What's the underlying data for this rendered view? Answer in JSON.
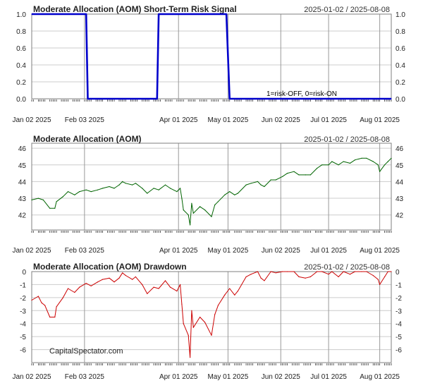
{
  "x_tick_labels": [
    "Jan 02 2025",
    "Feb 03 2025",
    "Apr 01 2025",
    "May 01 2025",
    "Jun 02 2025",
    "Jul 01 2025",
    "Aug 01 2025"
  ],
  "x_tick_dates": [
    "2025-01-02",
    "2025-02-03",
    "2025-04-01",
    "2025-05-01",
    "2025-06-02",
    "2025-07-01",
    "2025-08-01"
  ],
  "date_range": [
    "2025-01-02",
    "2025-08-08"
  ],
  "colors": {
    "risk": "#0000cc",
    "price": "#006400",
    "drawdown": "#cc0000",
    "grid": "#cccccc",
    "frame": "#7f7f7f",
    "vline": "#999999"
  },
  "watermark": "CapitalSpectator.com",
  "chart_data": [
    {
      "type": "line",
      "title": "Moderate Allocation (AOM) Short-Term Risk Signal",
      "range_label": "2025-01-02 / 2025-08-08",
      "annotation": "1=risk-OFF, 0=risk-ON",
      "ylim": [
        0,
        1
      ],
      "yticks": [
        "0.0",
        "0.2",
        "0.4",
        "0.6",
        "0.8",
        "1.0"
      ],
      "grid": true,
      "series": [
        {
          "values": [
            [
              "2025-01-02",
              1
            ],
            [
              "2025-02-04",
              1
            ],
            [
              "2025-02-05",
              0
            ],
            [
              "2025-03-19",
              0
            ],
            [
              "2025-03-20",
              1
            ],
            [
              "2025-04-30",
              1
            ],
            [
              "2025-05-01",
              0.5
            ],
            [
              "2025-05-02",
              0
            ],
            [
              "2025-08-08",
              0
            ]
          ]
        }
      ]
    },
    {
      "type": "line",
      "title": "Moderate Allocation (AOM)",
      "range_label": "2025-01-02 / 2025-08-08",
      "ylim": [
        41.1,
        46.3
      ],
      "yticks": [
        "42",
        "43",
        "44",
        "45",
        "46"
      ],
      "grid": true,
      "series": [
        {
          "values": [
            [
              "2025-01-02",
              42.9
            ],
            [
              "2025-01-06",
              43.0
            ],
            [
              "2025-01-09",
              42.9
            ],
            [
              "2025-01-13",
              42.4
            ],
            [
              "2025-01-16",
              42.4
            ],
            [
              "2025-01-17",
              42.8
            ],
            [
              "2025-01-21",
              43.1
            ],
            [
              "2025-01-24",
              43.4
            ],
            [
              "2025-01-28",
              43.2
            ],
            [
              "2025-01-31",
              43.4
            ],
            [
              "2025-02-04",
              43.5
            ],
            [
              "2025-02-07",
              43.4
            ],
            [
              "2025-02-11",
              43.5
            ],
            [
              "2025-02-14",
              43.6
            ],
            [
              "2025-02-18",
              43.7
            ],
            [
              "2025-02-21",
              43.6
            ],
            [
              "2025-02-24",
              43.8
            ],
            [
              "2025-02-26",
              44.0
            ],
            [
              "2025-02-28",
              43.9
            ],
            [
              "2025-03-04",
              43.8
            ],
            [
              "2025-03-06",
              43.9
            ],
            [
              "2025-03-10",
              43.6
            ],
            [
              "2025-03-13",
              43.3
            ],
            [
              "2025-03-17",
              43.6
            ],
            [
              "2025-03-20",
              43.5
            ],
            [
              "2025-03-24",
              43.8
            ],
            [
              "2025-03-27",
              43.6
            ],
            [
              "2025-03-31",
              43.4
            ],
            [
              "2025-04-02",
              43.6
            ],
            [
              "2025-04-03",
              43.0
            ],
            [
              "2025-04-04",
              42.3
            ],
            [
              "2025-04-07",
              42.0
            ],
            [
              "2025-04-08",
              41.4
            ],
            [
              "2025-04-09",
              42.7
            ],
            [
              "2025-04-10",
              42.1
            ],
            [
              "2025-04-14",
              42.5
            ],
            [
              "2025-04-17",
              42.3
            ],
            [
              "2025-04-21",
              41.9
            ],
            [
              "2025-04-23",
              42.6
            ],
            [
              "2025-04-25",
              42.8
            ],
            [
              "2025-04-29",
              43.2
            ],
            [
              "2025-05-02",
              43.4
            ],
            [
              "2025-05-05",
              43.2
            ],
            [
              "2025-05-07",
              43.3
            ],
            [
              "2025-05-12",
              43.8
            ],
            [
              "2025-05-15",
              43.9
            ],
            [
              "2025-05-19",
              44.0
            ],
            [
              "2025-05-21",
              43.8
            ],
            [
              "2025-05-23",
              43.7
            ],
            [
              "2025-05-27",
              44.1
            ],
            [
              "2025-05-30",
              44.1
            ],
            [
              "2025-06-03",
              44.3
            ],
            [
              "2025-06-06",
              44.5
            ],
            [
              "2025-06-10",
              44.6
            ],
            [
              "2025-06-13",
              44.4
            ],
            [
              "2025-06-17",
              44.4
            ],
            [
              "2025-06-20",
              44.4
            ],
            [
              "2025-06-24",
              44.8
            ],
            [
              "2025-06-27",
              45.0
            ],
            [
              "2025-07-01",
              45.0
            ],
            [
              "2025-07-03",
              45.2
            ],
            [
              "2025-07-07",
              45.0
            ],
            [
              "2025-07-10",
              45.2
            ],
            [
              "2025-07-14",
              45.1
            ],
            [
              "2025-07-17",
              45.3
            ],
            [
              "2025-07-21",
              45.4
            ],
            [
              "2025-07-24",
              45.4
            ],
            [
              "2025-07-28",
              45.2
            ],
            [
              "2025-07-31",
              45.0
            ],
            [
              "2025-08-01",
              44.6
            ],
            [
              "2025-08-04",
              45.0
            ],
            [
              "2025-08-06",
              45.2
            ],
            [
              "2025-08-08",
              45.4
            ]
          ]
        }
      ]
    },
    {
      "type": "line",
      "title": "Moderate Allocation (AOM) Drawdown",
      "range_label": "2025-01-02 / 2025-08-08",
      "ylim": [
        -7,
        0
      ],
      "yticks": [
        "-6",
        "-5",
        "-4",
        "-3",
        "-2",
        "-1",
        "0"
      ],
      "grid": true,
      "series": [
        {
          "values": [
            [
              "2025-01-02",
              -2.2
            ],
            [
              "2025-01-06",
              -1.9
            ],
            [
              "2025-01-08",
              -2.4
            ],
            [
              "2025-01-10",
              -2.6
            ],
            [
              "2025-01-13",
              -3.5
            ],
            [
              "2025-01-16",
              -3.5
            ],
            [
              "2025-01-17",
              -2.7
            ],
            [
              "2025-01-21",
              -2.0
            ],
            [
              "2025-01-24",
              -1.3
            ],
            [
              "2025-01-28",
              -1.6
            ],
            [
              "2025-01-31",
              -1.2
            ],
            [
              "2025-02-04",
              -0.9
            ],
            [
              "2025-02-07",
              -1.1
            ],
            [
              "2025-02-11",
              -0.8
            ],
            [
              "2025-02-14",
              -0.6
            ],
            [
              "2025-02-18",
              -0.5
            ],
            [
              "2025-02-21",
              -0.8
            ],
            [
              "2025-02-24",
              -0.5
            ],
            [
              "2025-02-26",
              -0.1
            ],
            [
              "2025-02-28",
              -0.3
            ],
            [
              "2025-03-04",
              -0.6
            ],
            [
              "2025-03-06",
              -0.4
            ],
            [
              "2025-03-10",
              -1.0
            ],
            [
              "2025-03-13",
              -1.7
            ],
            [
              "2025-03-17",
              -1.2
            ],
            [
              "2025-03-20",
              -1.3
            ],
            [
              "2025-03-24",
              -0.7
            ],
            [
              "2025-03-27",
              -1.2
            ],
            [
              "2025-03-31",
              -1.5
            ],
            [
              "2025-04-02",
              -1.0
            ],
            [
              "2025-04-03",
              -2.5
            ],
            [
              "2025-04-04",
              -4.0
            ],
            [
              "2025-04-07",
              -4.9
            ],
            [
              "2025-04-08",
              -6.6
            ],
            [
              "2025-04-09",
              -3.0
            ],
            [
              "2025-04-10",
              -4.3
            ],
            [
              "2025-04-14",
              -3.5
            ],
            [
              "2025-04-17",
              -3.9
            ],
            [
              "2025-04-21",
              -4.9
            ],
            [
              "2025-04-23",
              -3.3
            ],
            [
              "2025-04-25",
              -2.6
            ],
            [
              "2025-04-29",
              -1.8
            ],
            [
              "2025-05-02",
              -1.3
            ],
            [
              "2025-05-05",
              -1.8
            ],
            [
              "2025-05-07",
              -1.5
            ],
            [
              "2025-05-12",
              -0.4
            ],
            [
              "2025-05-15",
              -0.2
            ],
            [
              "2025-05-19",
              0
            ],
            [
              "2025-05-21",
              -0.5
            ],
            [
              "2025-05-23",
              -0.7
            ],
            [
              "2025-05-27",
              0
            ],
            [
              "2025-05-30",
              -0.1
            ],
            [
              "2025-06-03",
              0
            ],
            [
              "2025-06-06",
              0
            ],
            [
              "2025-06-10",
              0
            ],
            [
              "2025-06-13",
              -0.4
            ],
            [
              "2025-06-17",
              -0.5
            ],
            [
              "2025-06-20",
              -0.4
            ],
            [
              "2025-06-24",
              0
            ],
            [
              "2025-06-27",
              0
            ],
            [
              "2025-07-01",
              -0.2
            ],
            [
              "2025-07-03",
              0
            ],
            [
              "2025-07-07",
              -0.4
            ],
            [
              "2025-07-10",
              0
            ],
            [
              "2025-07-14",
              -0.2
            ],
            [
              "2025-07-17",
              0
            ],
            [
              "2025-07-21",
              0
            ],
            [
              "2025-07-24",
              0
            ],
            [
              "2025-07-28",
              -0.3
            ],
            [
              "2025-07-31",
              -0.6
            ],
            [
              "2025-08-01",
              -1.0
            ],
            [
              "2025-08-04",
              -0.4
            ],
            [
              "2025-08-06",
              0
            ],
            [
              "2025-08-08",
              0
            ]
          ]
        }
      ]
    }
  ]
}
